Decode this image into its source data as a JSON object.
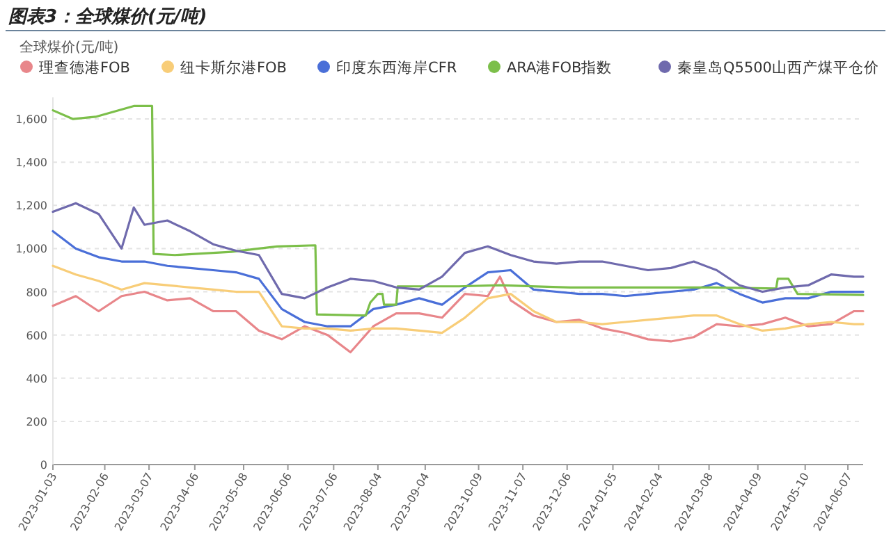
{
  "chart_data": {
    "type": "line",
    "title": "图表3：全球煤价(元/吨)",
    "ylabel": "全球煤价(元/吨)",
    "x": [
      "2023-01-03",
      "2023-01-18",
      "2023-02-02",
      "2023-02-17",
      "2023-03-04",
      "2023-03-19",
      "2023-04-03",
      "2023-04-18",
      "2023-05-03",
      "2023-05-18",
      "2023-06-02",
      "2023-06-17",
      "2023-07-02",
      "2023-07-17",
      "2023-08-01",
      "2023-08-16",
      "2023-08-31",
      "2023-09-15",
      "2023-09-30",
      "2023-10-15",
      "2023-10-30",
      "2023-11-14",
      "2023-11-29",
      "2023-12-14",
      "2023-12-29",
      "2024-01-13",
      "2024-01-28",
      "2024-02-12",
      "2024-02-27",
      "2024-03-13",
      "2024-03-28",
      "2024-04-12",
      "2024-04-27",
      "2024-05-12",
      "2024-05-27",
      "2024-06-11",
      "2024-06-17"
    ],
    "series": [
      {
        "name": "理查德港FOB",
        "color": "#e8868a",
        "x": [
          "2023-01-03",
          "2023-01-18",
          "2023-02-02",
          "2023-02-17",
          "2023-03-04",
          "2023-03-19",
          "2023-04-03",
          "2023-04-18",
          "2023-05-03",
          "2023-05-18",
          "2023-06-02",
          "2023-06-17",
          "2023-07-02",
          "2023-07-17",
          "2023-08-01",
          "2023-08-16",
          "2023-08-31",
          "2023-09-15",
          "2023-09-30",
          "2023-10-15",
          "2023-10-23",
          "2023-10-30",
          "2023-11-14",
          "2023-11-29",
          "2023-12-14",
          "2023-12-29",
          "2024-01-13",
          "2024-01-28",
          "2024-02-12",
          "2024-02-27",
          "2024-03-13",
          "2024-03-28",
          "2024-04-12",
          "2024-04-27",
          "2024-05-12",
          "2024-05-27",
          "2024-06-11",
          "2024-06-17"
        ],
        "values": [
          735,
          780,
          710,
          780,
          800,
          760,
          770,
          710,
          710,
          620,
          580,
          640,
          600,
          520,
          640,
          700,
          700,
          680,
          790,
          780,
          870,
          760,
          690,
          660,
          670,
          630,
          610,
          580,
          570,
          590,
          650,
          640,
          650,
          680,
          640,
          650,
          710,
          710
        ]
      },
      {
        "name": "纽卡斯尔港FOB",
        "color": "#f8cd78",
        "values": [
          920,
          880,
          850,
          810,
          840,
          830,
          820,
          810,
          800,
          800,
          640,
          630,
          630,
          620,
          630,
          630,
          620,
          610,
          680,
          770,
          790,
          710,
          660,
          660,
          650,
          660,
          670,
          680,
          690,
          690,
          650,
          620,
          630,
          650,
          660,
          650,
          650
        ]
      },
      {
        "name": "印度东西海岸CFR",
        "color": "#4a6fd8",
        "values": [
          1080,
          1000,
          960,
          940,
          940,
          920,
          910,
          900,
          890,
          860,
          720,
          660,
          640,
          640,
          720,
          740,
          770,
          740,
          820,
          890,
          900,
          810,
          800,
          790,
          790,
          780,
          790,
          800,
          810,
          840,
          790,
          750,
          770,
          770,
          800,
          800,
          800
        ]
      },
      {
        "name": "ARA港FOB指数",
        "color": "#7cbf4a",
        "x": [
          "2023-01-03",
          "2023-01-16",
          "2023-01-31",
          "2023-02-25",
          "2023-03-09",
          "2023-03-10",
          "2023-03-24",
          "2023-04-30",
          "2023-05-18",
          "2023-05-30",
          "2023-06-24",
          "2023-06-25",
          "2023-07-27",
          "2023-07-30",
          "2023-08-04",
          "2023-08-07",
          "2023-08-08",
          "2023-08-16",
          "2023-08-17",
          "2023-09-26",
          "2023-10-23",
          "2023-12-08",
          "2024-03-09",
          "2024-04-21",
          "2024-04-22",
          "2024-04-29",
          "2024-05-05",
          "2024-06-17"
        ],
        "values": [
          1640,
          1600,
          1610,
          1660,
          1660,
          975,
          970,
          985,
          1000,
          1010,
          1015,
          695,
          690,
          750,
          790,
          790,
          740,
          740,
          825,
          825,
          830,
          820,
          820,
          815,
          860,
          860,
          790,
          785
        ]
      },
      {
        "name": "秦皇岛Q5500山西产煤平仓价",
        "color": "#6f6aad",
        "x": [
          "2023-01-03",
          "2023-01-18",
          "2023-02-02",
          "2023-02-17",
          "2023-02-25",
          "2023-03-04",
          "2023-03-19",
          "2023-04-03",
          "2023-04-18",
          "2023-05-03",
          "2023-05-18",
          "2023-06-02",
          "2023-06-17",
          "2023-07-02",
          "2023-07-17",
          "2023-08-01",
          "2023-08-16",
          "2023-08-31",
          "2023-09-15",
          "2023-09-30",
          "2023-10-15",
          "2023-10-30",
          "2023-11-14",
          "2023-11-29",
          "2023-12-14",
          "2023-12-29",
          "2024-01-13",
          "2024-01-28",
          "2024-02-12",
          "2024-02-27",
          "2024-03-13",
          "2024-03-28",
          "2024-04-12",
          "2024-04-27",
          "2024-05-12",
          "2024-05-27",
          "2024-06-11",
          "2024-06-17"
        ],
        "values": [
          1170,
          1210,
          1160,
          1000,
          1190,
          1110,
          1130,
          1080,
          1020,
          990,
          970,
          790,
          770,
          820,
          860,
          850,
          820,
          810,
          870,
          980,
          1010,
          970,
          940,
          930,
          940,
          940,
          920,
          900,
          910,
          940,
          900,
          830,
          800,
          820,
          830,
          880,
          870,
          870
        ]
      }
    ],
    "xlim": [
      "2023-01-03",
      "2024-06-17"
    ],
    "xticks": [
      "2023-01-03",
      "2023-02-06",
      "2023-03-07",
      "2023-04-06",
      "2023-05-08",
      "2023-06-06",
      "2023-07-06",
      "2023-08-04",
      "2023-09-04",
      "2023-10-09",
      "2023-11-07",
      "2023-12-06",
      "2024-01-05",
      "2024-02-04",
      "2024-03-08",
      "2024-04-09",
      "2024-05-10",
      "2024-06-07"
    ],
    "ylim": [
      0,
      1700
    ],
    "yticks": [
      0,
      200,
      400,
      600,
      800,
      {
        "value": 1000,
        "label": "1,000"
      },
      {
        "value": 1200,
        "label": "1,200"
      },
      {
        "value": 1400,
        "label": "1,400"
      },
      {
        "value": 1600,
        "label": "1,600"
      }
    ],
    "grid": "y",
    "legend": "top left",
    "marker": "none",
    "line_style": "solid"
  }
}
